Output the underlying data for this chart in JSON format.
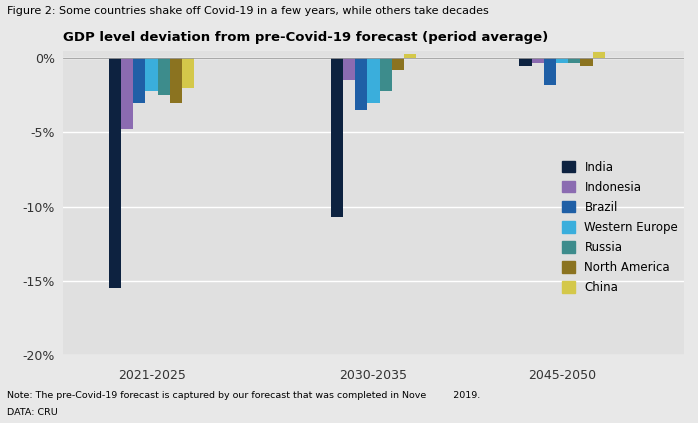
{
  "title": "Figure 2: Some countries shake off Covid-19 in a few years, while others take decades",
  "subtitle": "GDP level deviation from pre-Covid-19 forecast (period average)",
  "note": "Note: The pre-Covid-19 forecast is captured by our forecast that was completed in Nove         2019.",
  "data_source": "DATA: CRU",
  "periods": [
    "2021-2025",
    "2030-2035",
    "2045-2050"
  ],
  "countries": [
    "India",
    "Indonesia",
    "Brazil",
    "Western Europe",
    "Russia",
    "North America",
    "China"
  ],
  "colors": [
    "#0d2240",
    "#8b6bb1",
    "#1f5fa6",
    "#3aaedc",
    "#3d8c8c",
    "#8b7320",
    "#d4c84a"
  ],
  "values": {
    "2021-2025": [
      -15.5,
      -4.8,
      -3.0,
      -2.2,
      -2.5,
      -3.0,
      -2.0
    ],
    "2030-2035": [
      -10.7,
      -1.5,
      -3.5,
      -3.0,
      -2.2,
      -0.8,
      0.3
    ],
    "2045-2050": [
      -0.5,
      -0.3,
      -1.8,
      -0.3,
      -0.3,
      -0.5,
      0.4
    ]
  },
  "ylim": [
    -20,
    0.5
  ],
  "yticks": [
    0,
    -5,
    -10,
    -15,
    -20
  ],
  "ytick_labels": [
    "0%",
    "-5%",
    "-10%",
    "-15%",
    "-20%"
  ],
  "background_color": "#e8e8e8",
  "plot_background": "#e0e0e0",
  "bar_width": 0.55,
  "group_centers": [
    3.0,
    13.0,
    21.5
  ],
  "xlim": [
    -1.0,
    27.0
  ]
}
